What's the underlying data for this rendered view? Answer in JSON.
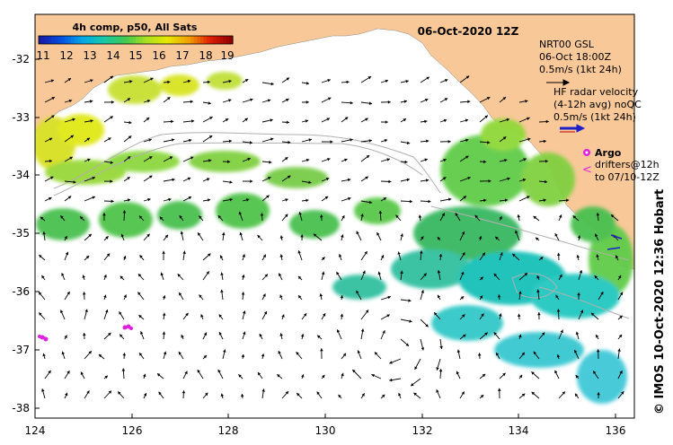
{
  "map": {
    "date_title": "06-Oct-2020 12Z",
    "colorbar": {
      "title": "4h comp, p50, All Sats",
      "labels": [
        "11",
        "12",
        "13",
        "14",
        "15",
        "16",
        "17",
        "18",
        "19"
      ],
      "colors": [
        "#1a1aa8",
        "#0050e0",
        "#00a8e8",
        "#18c8a8",
        "#40c850",
        "#a8e020",
        "#e8e800",
        "#f0a000",
        "#e02000",
        "#900000"
      ]
    },
    "x_ticks": [
      "124",
      "126",
      "128",
      "130",
      "132",
      "134",
      "136"
    ],
    "y_ticks": [
      "-32",
      "-33",
      "-34",
      "-35",
      "-36",
      "-37",
      "-38"
    ],
    "legend": {
      "gsl_line1": "NRT00 GSL",
      "gsl_line2": "06-Oct 18:00Z",
      "gsl_line3": "0.5m/s (1kt 24h)",
      "hf_line1": "HF radar velocity",
      "hf_line2": "(4-12h avg) noQC",
      "hf_line3": "0.5m/s (1kt 24h)",
      "argo_label": "Argo",
      "drifters_line1": "drifters@12h",
      "drifters_line2": "to 07/10-12Z"
    },
    "credit": "© IMOS 10-Oct-2020 12:36 Hobart",
    "land_color": "#f8c898",
    "hf_arrow_color": "#2020c8",
    "argo_color": "#e020e0"
  }
}
